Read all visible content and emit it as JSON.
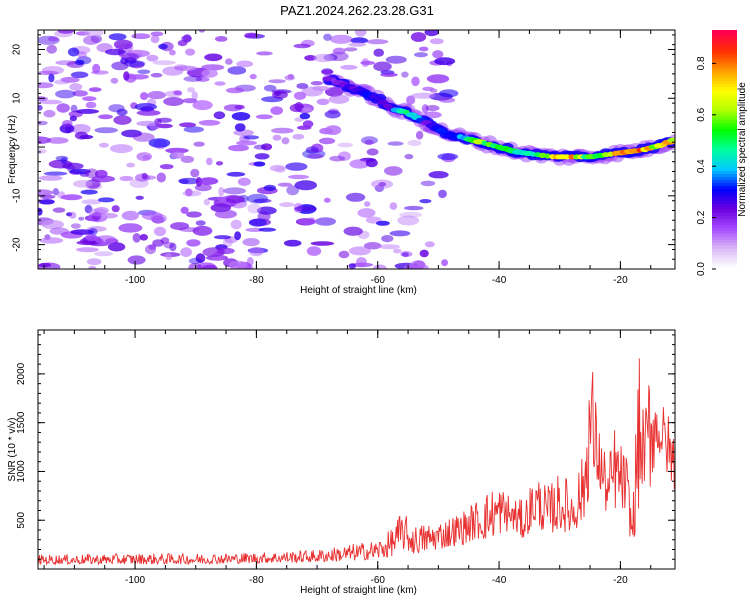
{
  "title": "PAZ1.2024.262.23.28.G31",
  "colors": {
    "snr_line": "#e83030",
    "frame": "#000000"
  },
  "chart_data": [
    {
      "type": "heatmap",
      "xlabel": "Height of straight line (km)",
      "ylabel": "Frequency (Hz)",
      "xlim": [
        -116,
        -11
      ],
      "ylim": [
        -25,
        24
      ],
      "xticks": [
        -100,
        -80,
        -60,
        -40,
        -20
      ],
      "yticks": [
        -20,
        -10,
        0,
        10,
        20
      ],
      "colorbar": {
        "label": "Normalized spectral amplitude",
        "range": [
          0,
          0.93
        ],
        "ticks": [
          0,
          0.2,
          0.4,
          0.6,
          0.8
        ],
        "colormap": [
          "#ffffff",
          "#d9b8f5",
          "#a64bff",
          "#6a00e0",
          "#0000ff",
          "#00c8ff",
          "#00ffa0",
          "#00ff00",
          "#b0ff00",
          "#ffff00",
          "#ffa000",
          "#ff3000",
          "#ff0050"
        ]
      },
      "ridge": {
        "x": [
          -68,
          -64,
          -60,
          -58,
          -55,
          -52,
          -49,
          -46,
          -43,
          -40,
          -37,
          -34,
          -31,
          -28,
          -25,
          -22,
          -19,
          -16,
          -13,
          -11
        ],
        "frequency": [
          14,
          12,
          10,
          8,
          7,
          5,
          3,
          2,
          1,
          0,
          -1,
          -1.5,
          -2,
          -2,
          -2,
          -1.5,
          -1,
          -0.5,
          0.5,
          1.5
        ],
        "amplitude": [
          0.25,
          0.3,
          0.35,
          0.3,
          0.55,
          0.3,
          0.35,
          0.45,
          0.7,
          0.6,
          0.5,
          0.55,
          0.8,
          0.9,
          0.6,
          0.75,
          0.85,
          0.9,
          0.75,
          0.85
        ]
      },
      "noise_extent_x": [
        -116,
        -48
      ],
      "noise_amplitude": [
        0.05,
        0.25
      ]
    },
    {
      "type": "line",
      "xlabel": "Height of straight line (km)",
      "ylabel": "SNR (10 * v/v)",
      "xlim": [
        -116,
        -11
      ],
      "ylim": [
        0,
        2450
      ],
      "xticks": [
        -100,
        -80,
        -60,
        -40,
        -20
      ],
      "yticks": [
        500,
        1000,
        1500,
        2000
      ],
      "series": [
        {
          "x": [
            -116,
            -110,
            -100,
            -90,
            -80,
            -70,
            -65,
            -60,
            -58,
            -56,
            -54,
            -50,
            -46,
            -44,
            -42,
            -40,
            -38,
            -36,
            -34,
            -32,
            -30,
            -28,
            -26,
            -25,
            -24,
            -23,
            -22,
            -21,
            -20,
            -19,
            -18,
            -17,
            -16,
            -15,
            -14,
            -13,
            -12,
            -11
          ],
          "envelope_low": [
            50,
            50,
            50,
            50,
            60,
            70,
            80,
            100,
            120,
            200,
            150,
            200,
            250,
            300,
            300,
            350,
            400,
            300,
            450,
            350,
            400,
            350,
            500,
            800,
            900,
            700,
            500,
            600,
            650,
            500,
            200,
            600,
            900,
            800,
            1200,
            1100,
            900,
            800
          ],
          "envelope_high": [
            150,
            150,
            160,
            160,
            170,
            200,
            250,
            300,
            400,
            600,
            450,
            500,
            600,
            700,
            800,
            900,
            750,
            700,
            1000,
            850,
            1000,
            900,
            1200,
            2450,
            1700,
            1350,
            1100,
            1500,
            1300,
            1200,
            600,
            2250,
            1500,
            2450,
            1750,
            1700,
            1600,
            1400
          ]
        }
      ]
    }
  ]
}
